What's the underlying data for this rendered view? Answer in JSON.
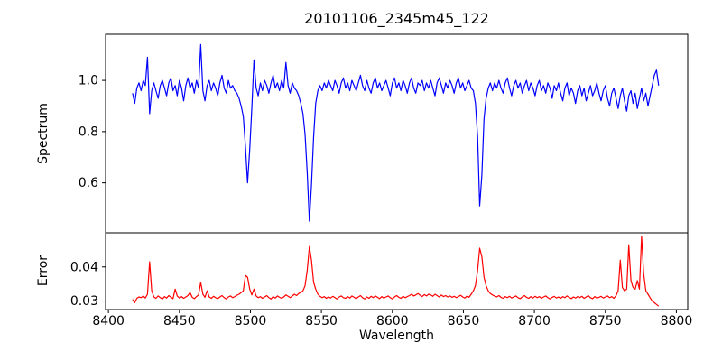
{
  "chart_data": {
    "type": "line",
    "title": "20101106_2345m45_122",
    "xlabel": "Wavelength",
    "background": "#ffffff",
    "axes_color": "#000000",
    "legend": "none",
    "grid": false,
    "xlim": [
      8398,
      8808
    ],
    "xticks": [
      8400,
      8450,
      8500,
      8550,
      8600,
      8650,
      8700,
      8750,
      8800
    ],
    "xtick_labels": [
      "8400",
      "8450",
      "8500",
      "8550",
      "8600",
      "8650",
      "8700",
      "8750",
      "8800"
    ],
    "panels": [
      {
        "name": "spectrum",
        "ylabel": "Spectrum",
        "ylim": [
          0.405,
          1.18
        ],
        "yticks": [
          0.6,
          0.8,
          1.0
        ],
        "ytick_labels": [
          "0.6",
          "0.8",
          "1.0"
        ],
        "line_color": "#0000ff",
        "x_start": 8417,
        "x_step": 1.5,
        "features": "continuum ~0.97; upward spikes at 8427 (1.09) and 8465 (1.14); Ca II absorption lines at 8498 (0.60), 8542 (0.45), 8662 (0.51); noisier declining continuum 8700-8785 with recovery to ~1.04 at end",
        "values": [
          0.95,
          0.91,
          0.97,
          0.99,
          0.96,
          1.0,
          0.98,
          1.09,
          0.87,
          0.96,
          0.99,
          0.96,
          0.93,
          0.98,
          1.0,
          0.97,
          0.94,
          0.99,
          1.01,
          0.96,
          0.98,
          0.94,
          1.0,
          0.97,
          0.92,
          0.98,
          1.01,
          0.97,
          0.99,
          0.95,
          1.0,
          0.97,
          1.14,
          0.96,
          0.92,
          0.98,
          1.0,
          0.96,
          0.99,
          0.97,
          0.94,
          0.99,
          1.02,
          0.97,
          0.95,
          1.0,
          0.97,
          0.98,
          0.96,
          0.95,
          0.93,
          0.9,
          0.86,
          0.74,
          0.6,
          0.73,
          0.89,
          1.08,
          0.97,
          0.94,
          0.99,
          0.96,
          1.0,
          0.98,
          0.95,
          0.99,
          1.02,
          0.97,
          0.99,
          0.96,
          1.0,
          0.97,
          1.07,
          0.98,
          0.95,
          0.99,
          0.97,
          0.96,
          0.94,
          0.91,
          0.87,
          0.79,
          0.64,
          0.45,
          0.59,
          0.78,
          0.91,
          0.96,
          0.98,
          0.96,
          0.99,
          0.97,
          1.0,
          0.98,
          0.96,
          1.0,
          0.98,
          0.95,
          0.99,
          1.01,
          0.97,
          0.99,
          0.96,
          1.0,
          0.98,
          0.96,
          0.99,
          1.02,
          0.98,
          0.96,
          1.0,
          0.97,
          0.95,
          0.99,
          1.01,
          0.97,
          0.99,
          0.96,
          0.98,
          1.0,
          0.97,
          0.94,
          0.99,
          1.01,
          0.97,
          0.99,
          0.96,
          1.0,
          0.98,
          0.95,
          0.99,
          1.01,
          0.97,
          0.95,
          0.99,
          0.98,
          1.0,
          0.96,
          0.99,
          0.97,
          1.0,
          0.97,
          0.94,
          0.99,
          1.01,
          0.98,
          0.95,
          0.99,
          0.97,
          1.0,
          0.98,
          0.95,
          0.99,
          1.01,
          0.97,
          0.99,
          0.96,
          0.98,
          1.0,
          0.97,
          0.96,
          0.91,
          0.78,
          0.51,
          0.63,
          0.85,
          0.93,
          0.97,
          0.99,
          0.96,
          0.99,
          0.97,
          1.0,
          0.97,
          0.95,
          0.99,
          1.01,
          0.97,
          0.94,
          0.98,
          1.0,
          0.97,
          0.99,
          0.95,
          0.98,
          1.0,
          0.96,
          0.99,
          0.97,
          0.94,
          0.98,
          1.0,
          0.96,
          0.98,
          0.95,
          0.99,
          0.97,
          0.93,
          0.98,
          0.96,
          0.99,
          0.95,
          0.92,
          0.97,
          0.99,
          0.94,
          0.97,
          0.95,
          0.91,
          0.96,
          0.98,
          0.94,
          0.97,
          0.92,
          0.95,
          0.98,
          0.94,
          0.96,
          0.99,
          0.95,
          0.92,
          0.96,
          0.98,
          0.93,
          0.9,
          0.95,
          0.97,
          0.93,
          0.89,
          0.94,
          0.97,
          0.92,
          0.88,
          0.94,
          0.96,
          0.91,
          0.95,
          0.89,
          0.93,
          0.97,
          0.92,
          0.95,
          0.9,
          0.94,
          0.98,
          1.02,
          1.04,
          0.98
        ]
      },
      {
        "name": "error",
        "ylabel": "Error",
        "ylim": [
          0.0275,
          0.05
        ],
        "yticks": [
          0.03,
          0.04
        ],
        "ytick_labels": [
          "0.03",
          "0.04"
        ],
        "line_color": "#ff0000",
        "x_start": 8417,
        "x_step": 1.5,
        "features": "baseline ~0.031; peaks at 8429 (0.0415), 8465 (0.0355), 8497 (0.0375), 8541 (0.046), 8662 (0.0455), 8761 (0.042), 8767 (0.0465), 8776 (0.049); falls to ~0.0285 at end",
        "values": [
          0.0305,
          0.0295,
          0.0308,
          0.0312,
          0.031,
          0.0315,
          0.0309,
          0.032,
          0.0415,
          0.033,
          0.0312,
          0.0308,
          0.0315,
          0.031,
          0.0306,
          0.0313,
          0.0309,
          0.0316,
          0.0311,
          0.0307,
          0.0335,
          0.0315,
          0.0309,
          0.0313,
          0.0308,
          0.0312,
          0.0316,
          0.0325,
          0.0311,
          0.0307,
          0.0313,
          0.0318,
          0.0355,
          0.032,
          0.0311,
          0.033,
          0.0312,
          0.0308,
          0.0314,
          0.031,
          0.0307,
          0.0312,
          0.0316,
          0.031,
          0.0306,
          0.0312,
          0.0315,
          0.031,
          0.0313,
          0.0317,
          0.032,
          0.0325,
          0.033,
          0.0375,
          0.037,
          0.0335,
          0.0318,
          0.0335,
          0.0315,
          0.031,
          0.0313,
          0.0308,
          0.0312,
          0.0316,
          0.031,
          0.0306,
          0.0313,
          0.0309,
          0.0315,
          0.0311,
          0.0308,
          0.0312,
          0.0318,
          0.0314,
          0.031,
          0.0315,
          0.032,
          0.0316,
          0.0322,
          0.0325,
          0.033,
          0.0345,
          0.039,
          0.046,
          0.042,
          0.0355,
          0.0335,
          0.032,
          0.0314,
          0.031,
          0.0313,
          0.0308,
          0.0312,
          0.0309,
          0.0314,
          0.031,
          0.0306,
          0.0312,
          0.0315,
          0.031,
          0.0308,
          0.0313,
          0.0309,
          0.0315,
          0.0311,
          0.0307,
          0.0312,
          0.0316,
          0.031,
          0.0306,
          0.0312,
          0.0308,
          0.0314,
          0.031,
          0.0315,
          0.0311,
          0.0307,
          0.0313,
          0.0309,
          0.0312,
          0.0315,
          0.031,
          0.0306,
          0.0312,
          0.0316,
          0.0311,
          0.0308,
          0.0314,
          0.031,
          0.0313,
          0.0316,
          0.032,
          0.0315,
          0.0318,
          0.0322,
          0.0317,
          0.0313,
          0.0319,
          0.0315,
          0.032,
          0.0318,
          0.0314,
          0.032,
          0.0316,
          0.0312,
          0.0318,
          0.0313,
          0.0316,
          0.0312,
          0.0315,
          0.0311,
          0.0314,
          0.031,
          0.0313,
          0.0317,
          0.0312,
          0.0309,
          0.0315,
          0.0311,
          0.032,
          0.033,
          0.0345,
          0.039,
          0.0455,
          0.043,
          0.037,
          0.0345,
          0.033,
          0.0322,
          0.0318,
          0.0315,
          0.0312,
          0.0316,
          0.0311,
          0.0308,
          0.0313,
          0.031,
          0.0314,
          0.0309,
          0.0312,
          0.0315,
          0.031,
          0.0307,
          0.0312,
          0.0316,
          0.0311,
          0.0308,
          0.0313,
          0.0309,
          0.0314,
          0.031,
          0.0313,
          0.0308,
          0.0312,
          0.0315,
          0.031,
          0.0306,
          0.0311,
          0.0314,
          0.0309,
          0.0312,
          0.0308,
          0.0313,
          0.031,
          0.0315,
          0.0311,
          0.0307,
          0.0312,
          0.0309,
          0.0313,
          0.031,
          0.0314,
          0.0308,
          0.0312,
          0.0316,
          0.031,
          0.0307,
          0.0313,
          0.0309,
          0.0311,
          0.0314,
          0.0309,
          0.0312,
          0.0315,
          0.031,
          0.0313,
          0.0308,
          0.0316,
          0.033,
          0.042,
          0.034,
          0.033,
          0.0335,
          0.0465,
          0.036,
          0.034,
          0.0335,
          0.036,
          0.0335,
          0.049,
          0.038,
          0.033,
          0.032,
          0.031,
          0.03,
          0.0295,
          0.029,
          0.0285
        ]
      }
    ]
  }
}
